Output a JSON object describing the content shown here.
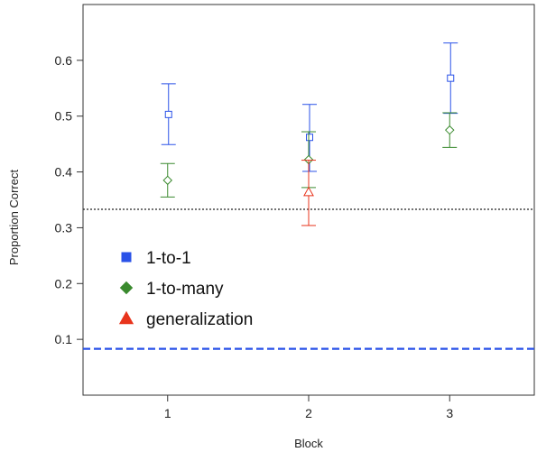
{
  "chart_data": {
    "type": "scatter",
    "title": "",
    "xlabel": "Block",
    "ylabel": "Proportion Correct",
    "xlim": [
      0.4,
      3.6
    ],
    "ylim": [
      0.0,
      0.7
    ],
    "x_ticks": [
      "1",
      "2",
      "3"
    ],
    "y_ticks": [
      "0.1",
      "0.2",
      "0.3",
      "0.4",
      "0.5",
      "0.6"
    ],
    "grid": false,
    "legend_position": "bottom-left",
    "error_bars": true,
    "series": [
      {
        "name": "1-to-1",
        "marker": "square",
        "color": "#2a52e8",
        "points": [
          {
            "x": 1,
            "y": 0.503,
            "low": 0.449,
            "high": 0.558
          },
          {
            "x": 2,
            "y": 0.462,
            "low": 0.401,
            "high": 0.521
          },
          {
            "x": 3,
            "y": 0.568,
            "low": 0.505,
            "high": 0.631
          }
        ]
      },
      {
        "name": "1-to-many",
        "marker": "diamond",
        "color": "#3a8a2e",
        "points": [
          {
            "x": 1,
            "y": 0.385,
            "low": 0.355,
            "high": 0.415
          },
          {
            "x": 2,
            "y": 0.422,
            "low": 0.372,
            "high": 0.472
          },
          {
            "x": 3,
            "y": 0.475,
            "low": 0.444,
            "high": 0.506
          }
        ]
      },
      {
        "name": "generalization",
        "marker": "triangle",
        "color": "#e8341c",
        "points": [
          {
            "x": 2,
            "y": 0.364,
            "low": 0.304,
            "high": 0.421
          }
        ]
      }
    ],
    "reference_lines": [
      {
        "y": 0.333,
        "style": "dotted",
        "color": "#222222"
      },
      {
        "y": 0.083,
        "style": "dashed",
        "color": "#2a52e8"
      }
    ]
  }
}
